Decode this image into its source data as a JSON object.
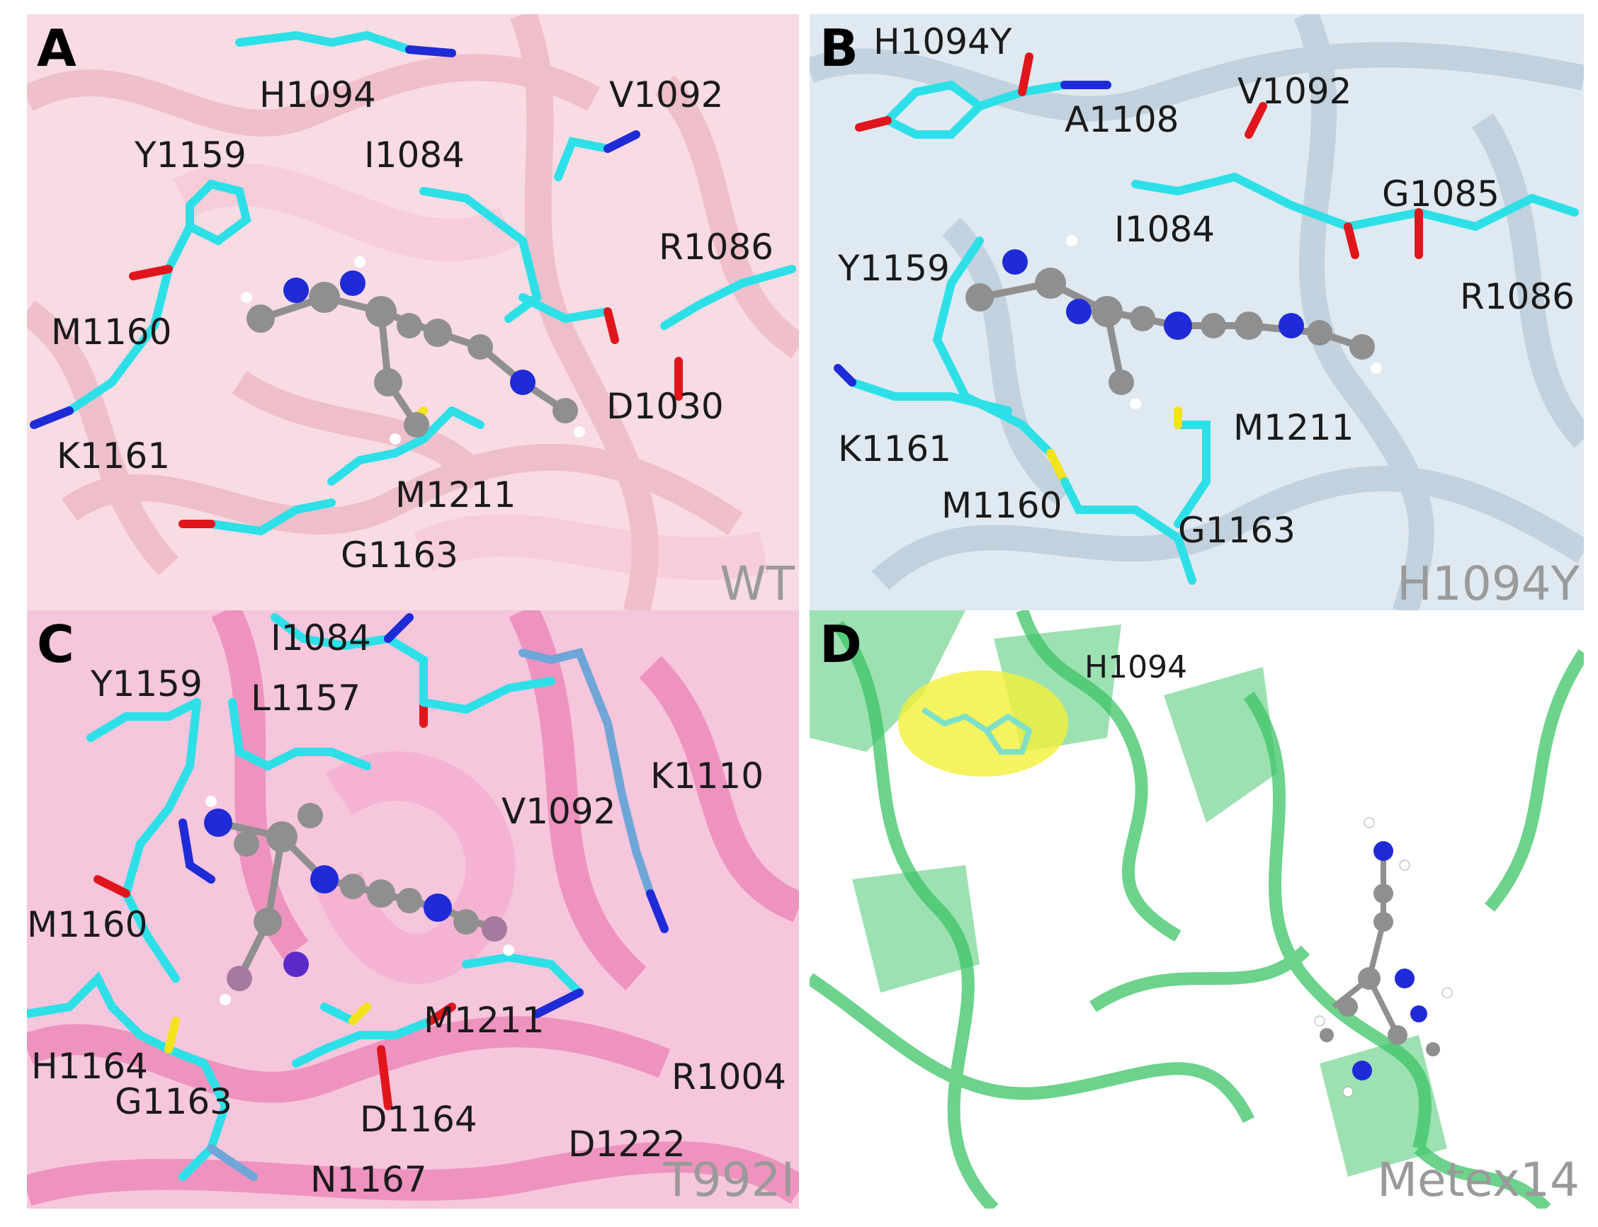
{
  "panels": [
    {
      "letter": "A",
      "tag": "WT",
      "residues": [
        "H1094",
        "V1092",
        "Y1159",
        "I1084",
        "R1086",
        "M1160",
        "D1030",
        "K1161",
        "M1211",
        "G1163"
      ]
    },
    {
      "letter": "B",
      "tag": "H1094Y",
      "residues": [
        "H1094Y",
        "A1108",
        "V1092",
        "I1084",
        "G1085",
        "Y1159",
        "R1086",
        "K1161",
        "M1211",
        "M1160",
        "G1163"
      ]
    },
    {
      "letter": "C",
      "tag": "T992I",
      "residues": [
        "I1084",
        "Y1159",
        "L1157",
        "K1110",
        "V1092",
        "M1160",
        "M1211",
        "H1164",
        "R1004",
        "G1163",
        "D1164",
        "D1222",
        "N1167"
      ]
    },
    {
      "letter": "D",
      "tag": "Metex14",
      "residues": [
        "H1094"
      ]
    }
  ],
  "colors": {
    "wt_background": "#f9dbe3",
    "h1094y_background": "#dfe9f1",
    "t992i_background": "#f6c6dd",
    "metex14_ribbon": "#3cc466",
    "carbon_stick": "#2de0e8",
    "nitrogen": "#1f2bd6",
    "oxygen": "#e0161c",
    "sulfur": "#f2e31b",
    "ligand_carbon": "#8f8f8f",
    "surface_highlight": "#f4f03a"
  },
  "icons": [
    "protein-ribbon",
    "ball-and-stick-ligand",
    "stick-residue",
    "molecular-surface"
  ]
}
